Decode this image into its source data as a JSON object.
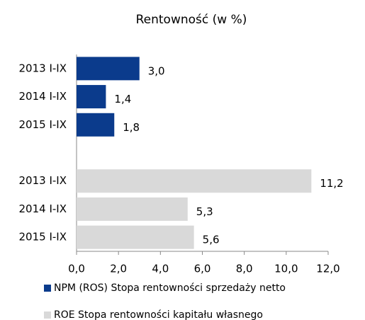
{
  "chart_data": {
    "type": "hbar",
    "title": "Rentowność (w %)",
    "categories": [
      "2013 I-IX",
      "2014 I-IX",
      "2015 I-IX",
      null,
      "2013 I-IX",
      "2014 I-IX",
      "2015 I-IX"
    ],
    "series": [
      {
        "name": "NPM (ROS) Stopa rentowności sprzedaży netto",
        "color": "#0b3b8c",
        "values": [
          3.0,
          1.4,
          1.8,
          null,
          null,
          null,
          null
        ],
        "value_labels": [
          "3,0",
          "1,4",
          "1,8",
          null,
          null,
          null,
          null
        ]
      },
      {
        "name": "ROE Stopa rentowności kapitału własnego",
        "color": "#d9d9d9",
        "values": [
          null,
          null,
          null,
          null,
          11.2,
          5.3,
          5.6
        ],
        "value_labels": [
          null,
          null,
          null,
          null,
          "11,2",
          "5,3",
          "5,6"
        ]
      }
    ],
    "xlim": [
      0,
      12
    ],
    "xticks": [
      {
        "value": 0,
        "label": "0,0"
      },
      {
        "value": 2,
        "label": "2,0"
      },
      {
        "value": 4,
        "label": "4,0"
      },
      {
        "value": 6,
        "label": "6,0"
      },
      {
        "value": 8,
        "label": "8,0"
      },
      {
        "value": 10,
        "label": "10,0"
      },
      {
        "value": 12,
        "label": "12,0"
      }
    ],
    "grid": false,
    "legend": "bottom"
  }
}
